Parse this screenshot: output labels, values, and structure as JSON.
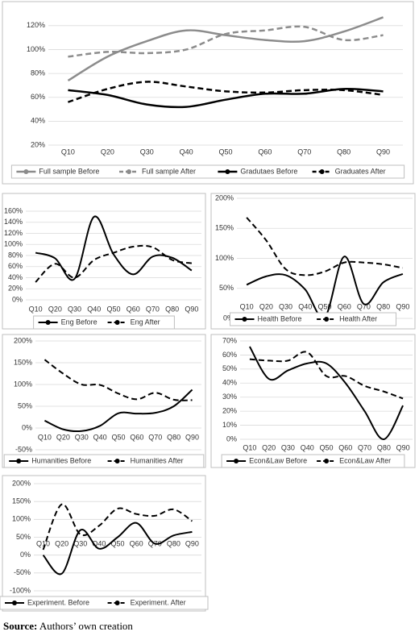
{
  "chart_data": [
    {
      "type": "line",
      "categories": [
        "Q10",
        "Q20",
        "Q30",
        "Q40",
        "Q50",
        "Q60",
        "Q70",
        "Q80",
        "Q90"
      ],
      "ylim": [
        20,
        130
      ],
      "yticks": [
        {
          "value": 20,
          "label": "20%"
        },
        {
          "value": 40,
          "label": "40%"
        },
        {
          "value": 60,
          "label": "60%"
        },
        {
          "value": 80,
          "label": "80%"
        },
        {
          "value": 100,
          "label": "100%"
        },
        {
          "value": 120,
          "label": "120%"
        }
      ],
      "grid": true,
      "series": [
        {
          "name": "Full sample Before",
          "color": "#8c8c8c",
          "line_style": "solid",
          "values": [
            74,
            94,
            107,
            116,
            112,
            108,
            107,
            115,
            127
          ]
        },
        {
          "name": "Full sample After",
          "color": "#8c8c8c",
          "line_style": "dashed",
          "values": [
            94,
            98,
            97,
            100,
            113,
            116,
            119,
            108,
            112
          ]
        },
        {
          "name": "Gradutaes Before",
          "color": "#000000",
          "line_style": "solid",
          "values": [
            66,
            62,
            54,
            52,
            58,
            63,
            63,
            67,
            65
          ]
        },
        {
          "name": "Graduates After",
          "color": "#000000",
          "line_style": "dashed",
          "values": [
            56,
            67,
            73,
            69,
            65,
            64,
            66,
            66,
            62
          ]
        }
      ]
    },
    {
      "type": "line",
      "categories": [
        "Q10",
        "Q20",
        "Q30",
        "Q40",
        "Q50",
        "Q60",
        "Q70",
        "Q80",
        "Q90"
      ],
      "ylim": [
        0,
        160
      ],
      "yticks": [
        {
          "value": 0,
          "label": "0%"
        },
        {
          "value": 20,
          "label": "20%"
        },
        {
          "value": 40,
          "label": "40%"
        },
        {
          "value": 60,
          "label": "60%"
        },
        {
          "value": 80,
          "label": "80%"
        },
        {
          "value": 100,
          "label": "100%"
        },
        {
          "value": 120,
          "label": "120%"
        },
        {
          "value": 140,
          "label": "140%"
        },
        {
          "value": 160,
          "label": "160%"
        }
      ],
      "grid": true,
      "series": [
        {
          "name": "Eng Before",
          "color": "#000000",
          "line_style": "solid",
          "values": [
            85,
            75,
            38,
            150,
            82,
            46,
            78,
            76,
            53
          ]
        },
        {
          "name": "Eng After",
          "color": "#000000",
          "line_style": "dashed",
          "values": [
            32,
            65,
            40,
            72,
            85,
            96,
            95,
            72,
            66
          ]
        }
      ]
    },
    {
      "type": "line",
      "categories": [
        "Q10",
        "Q20",
        "Q30",
        "Q40",
        "Q50",
        "Q60",
        "Q70",
        "Q80",
        "Q90"
      ],
      "ylim": [
        0,
        200
      ],
      "yticks": [
        {
          "value": 0,
          "label": "0%"
        },
        {
          "value": 50,
          "label": "50%"
        },
        {
          "value": 100,
          "label": "100%"
        },
        {
          "value": 150,
          "label": "150%"
        },
        {
          "value": 200,
          "label": "200%"
        }
      ],
      "grid": true,
      "series": [
        {
          "name": "Health Before",
          "color": "#000000",
          "line_style": "solid",
          "values": [
            56,
            70,
            72,
            48,
            2,
            103,
            24,
            60,
            74
          ]
        },
        {
          "name": "Health After",
          "color": "#000000",
          "line_style": "dashed",
          "values": [
            168,
            130,
            82,
            72,
            78,
            93,
            93,
            90,
            84
          ]
        }
      ]
    },
    {
      "type": "line",
      "categories": [
        "Q10",
        "Q20",
        "Q30",
        "Q40",
        "Q50",
        "Q60",
        "Q70",
        "Q80",
        "Q90"
      ],
      "ylim": [
        -50,
        200
      ],
      "yticks": [
        {
          "value": -50,
          "label": "-50%"
        },
        {
          "value": 0,
          "label": "0%"
        },
        {
          "value": 50,
          "label": "50%"
        },
        {
          "value": 100,
          "label": "100%"
        },
        {
          "value": 150,
          "label": "150%"
        },
        {
          "value": 200,
          "label": "200%"
        }
      ],
      "grid": true,
      "series": [
        {
          "name": "Humanities Before",
          "color": "#000000",
          "line_style": "solid",
          "values": [
            17,
            -3,
            -7,
            5,
            34,
            33,
            35,
            50,
            88
          ]
        },
        {
          "name": "Humanities After",
          "color": "#000000",
          "line_style": "dashed",
          "values": [
            157,
            125,
            100,
            99,
            79,
            66,
            81,
            65,
            64
          ]
        }
      ]
    },
    {
      "type": "line",
      "categories": [
        "Q10",
        "Q20",
        "Q30",
        "Q40",
        "Q50",
        "Q60",
        "Q70",
        "Q80",
        "Q90"
      ],
      "ylim": [
        0,
        70
      ],
      "yticks": [
        {
          "value": 0,
          "label": "0%"
        },
        {
          "value": 10,
          "label": "10%"
        },
        {
          "value": 20,
          "label": "20%"
        },
        {
          "value": 30,
          "label": "30%"
        },
        {
          "value": 40,
          "label": "40%"
        },
        {
          "value": 50,
          "label": "50%"
        },
        {
          "value": 60,
          "label": "60%"
        },
        {
          "value": 70,
          "label": "70%"
        }
      ],
      "grid": true,
      "series": [
        {
          "name": "Econ&Law Before",
          "color": "#000000",
          "line_style": "solid",
          "values": [
            66,
            43,
            49,
            54,
            54,
            40,
            20,
            0,
            24
          ]
        },
        {
          "name": "Econ&Law After",
          "color": "#000000",
          "line_style": "dashed",
          "values": [
            57,
            56,
            56,
            62,
            45,
            45,
            38,
            34,
            29
          ]
        }
      ]
    },
    {
      "type": "line",
      "categories": [
        "Q10",
        "Q20",
        "Q30",
        "Q40",
        "Q50",
        "Q60",
        "Q70",
        "Q80",
        "Q90"
      ],
      "ylim": [
        -100,
        200
      ],
      "yticks": [
        {
          "value": -100,
          "label": "-100%"
        },
        {
          "value": -50,
          "label": "-50%"
        },
        {
          "value": 0,
          "label": "0%"
        },
        {
          "value": 50,
          "label": "50%"
        },
        {
          "value": 100,
          "label": "100%"
        },
        {
          "value": 150,
          "label": "150%"
        },
        {
          "value": 200,
          "label": "200%"
        }
      ],
      "grid": true,
      "series": [
        {
          "name": "Experiment. Before",
          "color": "#000000",
          "line_style": "solid",
          "values": [
            0,
            -52,
            70,
            18,
            50,
            90,
            32,
            55,
            65
          ]
        },
        {
          "name": "Experiment. After",
          "color": "#000000",
          "line_style": "dashed",
          "values": [
            15,
            142,
            58,
            82,
            130,
            115,
            110,
            128,
            95
          ]
        }
      ]
    }
  ],
  "source": {
    "label": "Source:",
    "text": "Authors’ own creation"
  }
}
